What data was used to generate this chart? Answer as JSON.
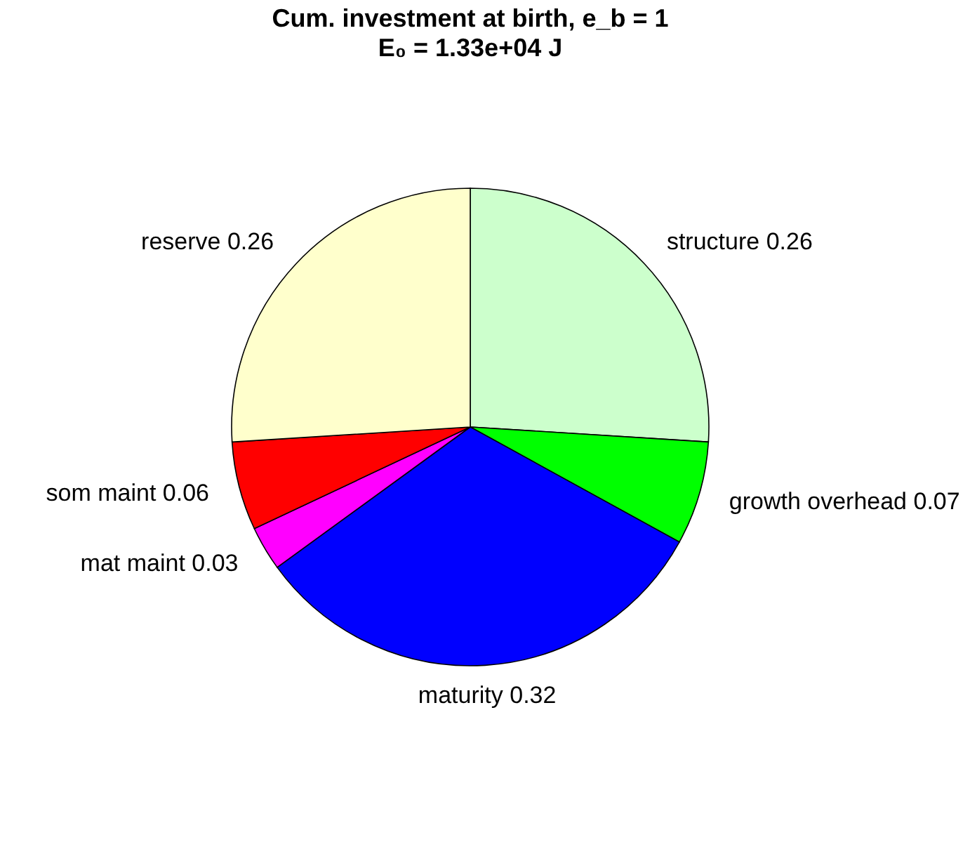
{
  "chart_data": {
    "type": "pie",
    "title": "Cum. investment at birth, e_b = 1",
    "subtitle": "E₀ = 1.33e+04 J",
    "categories": [
      "structure 0.26",
      "growth overhead 0.07",
      "maturity 0.32",
      "mat maint 0.03",
      "som maint 0.06",
      "reserve 0.26"
    ],
    "values": [
      0.26,
      0.07,
      0.32,
      0.03,
      0.06,
      0.26
    ],
    "colors": [
      "#ccffcc",
      "#00ff00",
      "#0000ff",
      "#ff00ff",
      "#ff0000",
      "#ffffcc"
    ]
  }
}
